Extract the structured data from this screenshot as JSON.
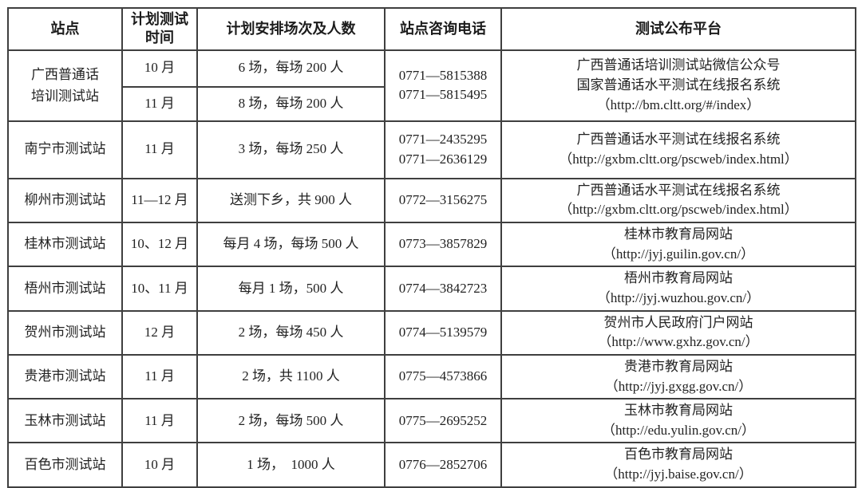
{
  "table": {
    "headers": [
      "站点",
      "计划测试\n时间",
      "计划安排场次及人数",
      "站点咨询电话",
      "测试公布平台"
    ],
    "rows": [
      {
        "station": "广西普通话\n培训测试站",
        "sub1": {
          "time": "10 月",
          "sessions": "6 场，每场 200 人"
        },
        "sub2": {
          "time": "11 月",
          "sessions": "8 场，每场 200 人"
        },
        "phone": "0771—5815388\n0771—5815495",
        "platform": "广西普通话培训测试站微信公众号\n国家普通话水平测试在线报名系统\n（http://bm.cltt.org/#/index）"
      },
      {
        "station": "南宁市测试站",
        "time": "11 月",
        "sessions": "3 场，每场 250 人",
        "phone": "0771—2435295\n0771—2636129",
        "platform": "广西普通话水平测试在线报名系统\n（http://gxbm.cltt.org/pscweb/index.html）"
      },
      {
        "station": "柳州市测试站",
        "time": "11—12 月",
        "sessions": "送测下乡，共 900 人",
        "phone": "0772—3156275",
        "platform": "广西普通话水平测试在线报名系统\n（http://gxbm.cltt.org/pscweb/index.html）"
      },
      {
        "station": "桂林市测试站",
        "time": "10、12 月",
        "sessions": "每月 4 场，每场 500 人",
        "phone": "0773—3857829",
        "platform": "桂林市教育局网站\n（http://jyj.guilin.gov.cn/）"
      },
      {
        "station": "梧州市测试站",
        "time": "10、11 月",
        "sessions": "每月 1 场，500 人",
        "phone": "0774—3842723",
        "platform": "梧州市教育局网站\n（http://jyj.wuzhou.gov.cn/）"
      },
      {
        "station": "贺州市测试站",
        "time": "12 月",
        "sessions": "2 场，每场 450 人",
        "phone": "0774—5139579",
        "platform": "贺州市人民政府门户网站\n（http://www.gxhz.gov.cn/）"
      },
      {
        "station": "贵港市测试站",
        "time": "11 月",
        "sessions": "2 场，共 1100 人",
        "phone": "0775—4573866",
        "platform": "贵港市教育局网站\n（http://jyj.gxgg.gov.cn/）"
      },
      {
        "station": "玉林市测试站",
        "time": "11 月",
        "sessions": "2 场，每场 500 人",
        "phone": "0775—2695252",
        "platform": "玉林市教育局网站\n（http://edu.yulin.gov.cn/）"
      },
      {
        "station": "百色市测试站",
        "time": "10 月",
        "sessions": "1 场，　1000 人",
        "phone": "0776—2852706",
        "platform": "百色市教育局网站\n（http://jyj.baise.gov.cn/）"
      }
    ]
  }
}
